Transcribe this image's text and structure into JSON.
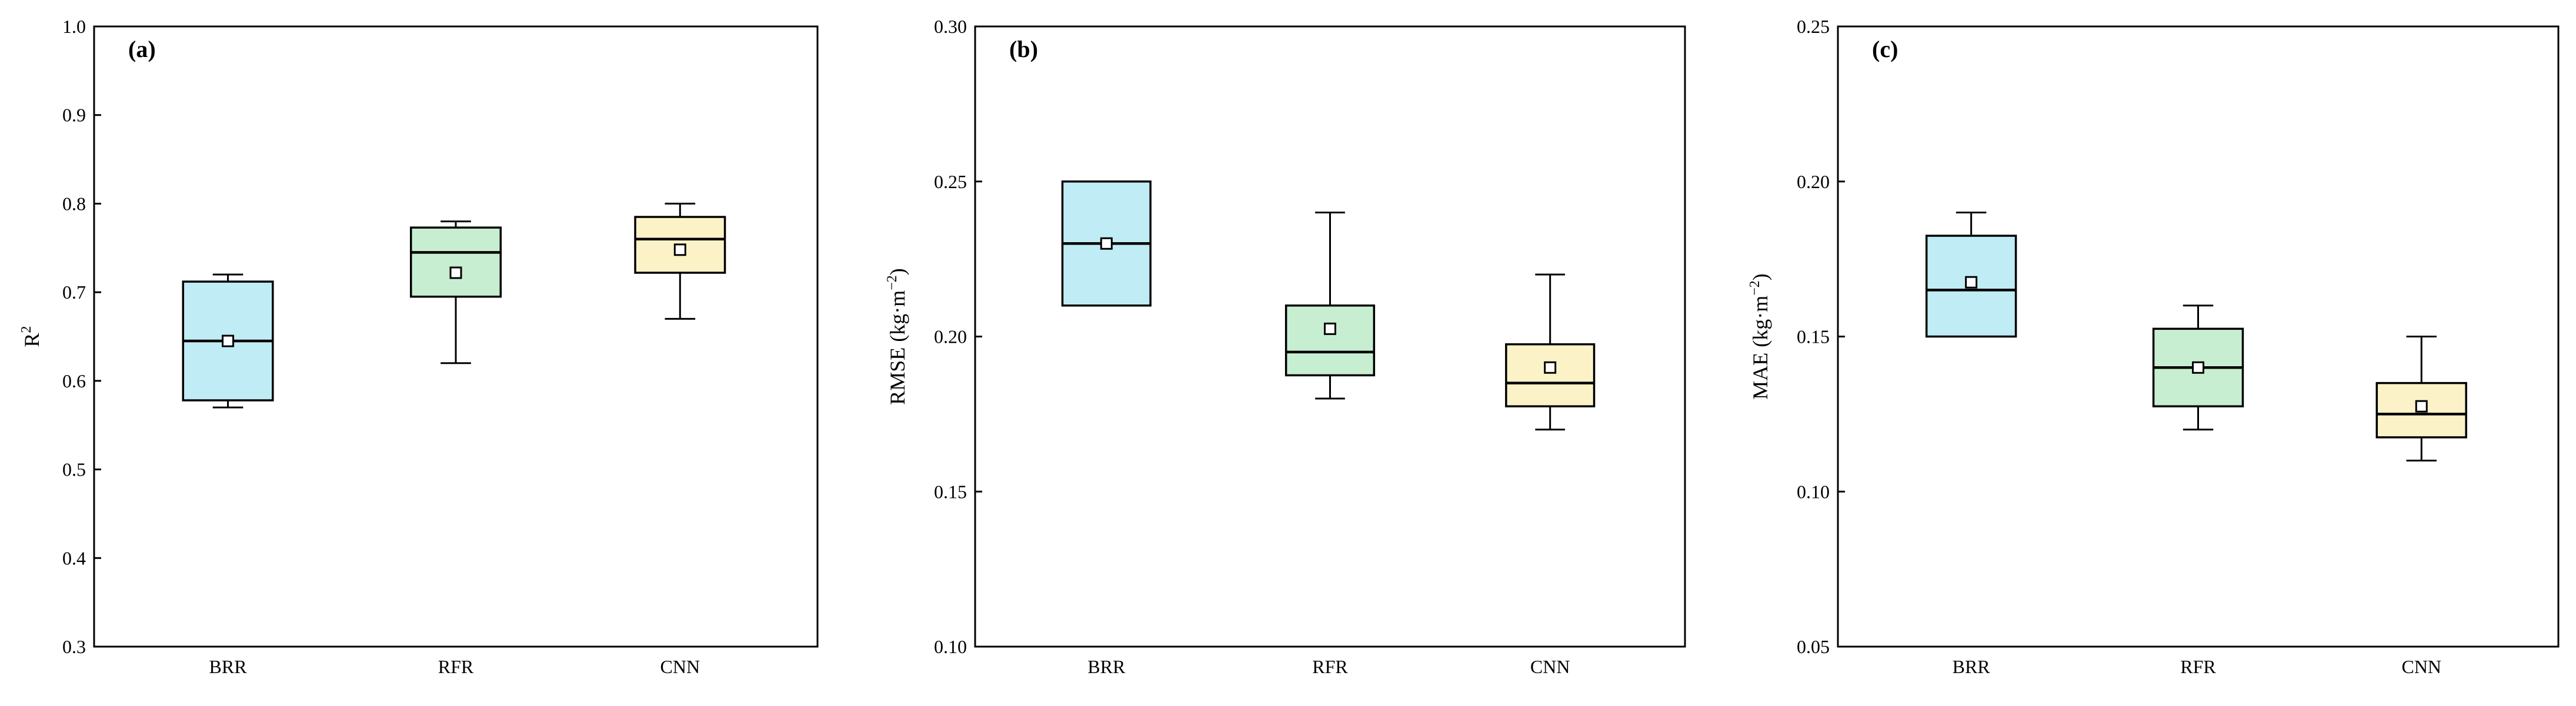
{
  "chart_data": [
    {
      "type": "box",
      "panel_label": "(a)",
      "title": "",
      "xlabel": "",
      "ylabel_main": "R",
      "ylabel_sup": "2",
      "ylabel_suffix": "",
      "ylim": [
        0.3,
        1.0
      ],
      "yticks": [
        "0.3",
        "0.4",
        "0.5",
        "0.6",
        "0.7",
        "0.8",
        "0.9",
        "1.0"
      ],
      "categories": [
        "BRR",
        "RFR",
        "CNN"
      ],
      "boxes": [
        {
          "category": "BRR",
          "min": 0.57,
          "q1": 0.578,
          "median": 0.645,
          "q3": 0.712,
          "max": 0.72,
          "mean": 0.645
        },
        {
          "category": "RFR",
          "min": 0.62,
          "q1": 0.695,
          "median": 0.745,
          "q3": 0.773,
          "max": 0.78,
          "mean": 0.722
        },
        {
          "category": "CNN",
          "min": 0.67,
          "q1": 0.722,
          "median": 0.76,
          "q3": 0.785,
          "max": 0.8,
          "mean": 0.748
        }
      ],
      "colors": [
        "#bfecf5",
        "#c7eed0",
        "#fbf3c7"
      ],
      "grid": false
    },
    {
      "type": "box",
      "panel_label": "(b)",
      "title": "",
      "xlabel": "",
      "ylabel_main": "RMSE (kg·m",
      "ylabel_sup": "−2",
      "ylabel_suffix": ")",
      "ylim": [
        0.1,
        0.3
      ],
      "yticks": [
        "0.10",
        "0.15",
        "0.20",
        "0.25",
        "0.30"
      ],
      "categories": [
        "BRR",
        "RFR",
        "CNN"
      ],
      "boxes": [
        {
          "category": "BRR",
          "min": 0.21,
          "q1": 0.21,
          "median": 0.23,
          "q3": 0.25,
          "max": 0.25,
          "mean": 0.23
        },
        {
          "category": "RFR",
          "min": 0.18,
          "q1": 0.1875,
          "median": 0.195,
          "q3": 0.21,
          "max": 0.24,
          "mean": 0.2025
        },
        {
          "category": "CNN",
          "min": 0.17,
          "q1": 0.1775,
          "median": 0.185,
          "q3": 0.1975,
          "max": 0.22,
          "mean": 0.19
        }
      ],
      "colors": [
        "#bfecf5",
        "#c7eed0",
        "#fbf3c7"
      ],
      "grid": false
    },
    {
      "type": "box",
      "panel_label": "(c)",
      "title": "",
      "xlabel": "",
      "ylabel_main": "MAE (kg·m",
      "ylabel_sup": "−2",
      "ylabel_suffix": ")",
      "ylim": [
        0.05,
        0.25
      ],
      "yticks": [
        "0.05",
        "0.10",
        "0.15",
        "0.20",
        "0.25"
      ],
      "categories": [
        "BRR",
        "RFR",
        "CNN"
      ],
      "boxes": [
        {
          "category": "BRR",
          "min": 0.15,
          "q1": 0.15,
          "median": 0.165,
          "q3": 0.1825,
          "max": 0.19,
          "mean": 0.1675
        },
        {
          "category": "RFR",
          "min": 0.12,
          "q1": 0.1275,
          "median": 0.14,
          "q3": 0.1525,
          "max": 0.16,
          "mean": 0.14
        },
        {
          "category": "CNN",
          "min": 0.11,
          "q1": 0.1175,
          "median": 0.125,
          "q3": 0.135,
          "max": 0.15,
          "mean": 0.1275
        }
      ],
      "colors": [
        "#bfecf5",
        "#c7eed0",
        "#fbf3c7"
      ],
      "grid": false
    }
  ]
}
